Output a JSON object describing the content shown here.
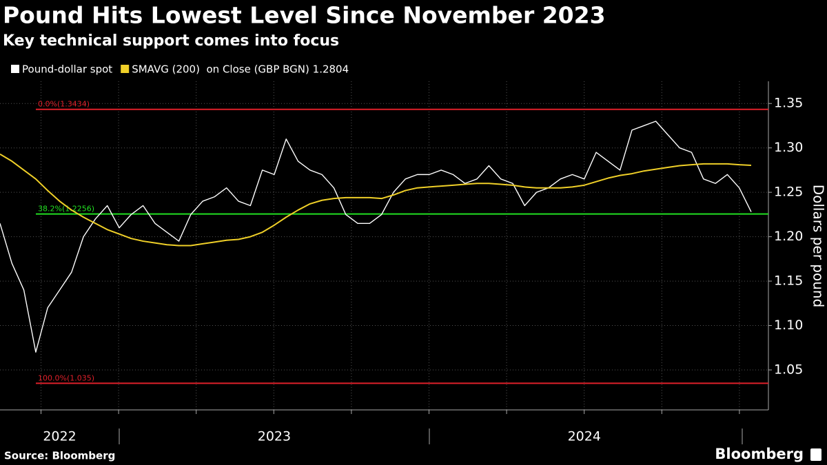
{
  "chart_data": {
    "type": "line",
    "title": "Pound Hits Lowest Level Since November 2023",
    "subtitle": "Key technical support comes into focus",
    "y_label": "Dollars per pound",
    "source": "Source: Bloomberg",
    "brand": "Bloomberg",
    "categories": [
      null,
      null,
      null,
      null,
      null,
      "2022",
      null,
      null,
      null,
      null,
      null,
      null,
      null,
      null,
      null,
      null,
      null,
      null,
      null,
      null,
      null,
      null,
      null,
      "2023",
      null,
      null,
      null,
      null,
      null,
      null,
      null,
      null,
      null,
      null,
      null,
      null,
      null,
      null,
      null,
      null,
      null,
      null,
      null,
      null,
      null,
      null,
      null,
      null,
      null,
      "2024",
      null,
      null,
      null,
      null,
      null,
      null,
      null,
      null,
      null,
      null,
      null,
      null,
      null,
      null
    ],
    "series": [
      {
        "name": "Pound-dollar spot",
        "color": "#ffffff",
        "values": [
          1.215,
          1.17,
          1.14,
          1.07,
          1.12,
          1.14,
          1.16,
          1.2,
          1.22,
          1.235,
          1.21,
          1.225,
          1.235,
          1.215,
          1.205,
          1.195,
          1.225,
          1.24,
          1.245,
          1.255,
          1.24,
          1.235,
          1.275,
          1.27,
          1.31,
          1.285,
          1.275,
          1.27,
          1.255,
          1.225,
          1.215,
          1.215,
          1.225,
          1.25,
          1.265,
          1.27,
          1.27,
          1.275,
          1.27,
          1.26,
          1.265,
          1.28,
          1.265,
          1.26,
          1.235,
          1.25,
          1.255,
          1.265,
          1.27,
          1.265,
          1.295,
          1.285,
          1.275,
          1.32,
          1.325,
          1.33,
          1.315,
          1.3,
          1.295,
          1.265,
          1.26,
          1.27,
          1.255,
          1.228
        ]
      },
      {
        "name": "SMAVG (200)  on Close (GBP BGN) 1.2804",
        "color": "#f0d028",
        "values": [
          1.293,
          1.285,
          1.275,
          1.265,
          1.252,
          1.24,
          1.23,
          1.222,
          1.215,
          1.208,
          1.203,
          1.198,
          1.195,
          1.193,
          1.191,
          1.19,
          1.19,
          1.192,
          1.194,
          1.196,
          1.197,
          1.2,
          1.205,
          1.213,
          1.222,
          1.23,
          1.237,
          1.241,
          1.243,
          1.244,
          1.244,
          1.244,
          1.243,
          1.247,
          1.252,
          1.255,
          1.256,
          1.257,
          1.258,
          1.259,
          1.26,
          1.26,
          1.259,
          1.258,
          1.256,
          1.255,
          1.255,
          1.255,
          1.256,
          1.258,
          1.262,
          1.266,
          1.269,
          1.271,
          1.274,
          1.276,
          1.278,
          1.28,
          1.281,
          1.282,
          1.282,
          1.282,
          1.281,
          1.2804
        ]
      }
    ],
    "annotations": [
      {
        "label": "0.0%(1.3434)",
        "value": 1.3434,
        "color": "#e0202a"
      },
      {
        "label": "38.2%(1.2256)",
        "value": 1.2256,
        "color": "#22e022"
      },
      {
        "label": "100.0%(1.035)",
        "value": 1.035,
        "color": "#e0202a"
      }
    ],
    "ylim": [
      1.005,
      1.375
    ],
    "yticks": [
      1.05,
      {
        "value": 1.1,
        "label": "1.10"
      },
      1.15,
      {
        "value": 1.2,
        "label": "1.20"
      },
      1.25,
      {
        "value": 1.3,
        "label": "1.30"
      },
      1.35
    ],
    "grid": true
  }
}
